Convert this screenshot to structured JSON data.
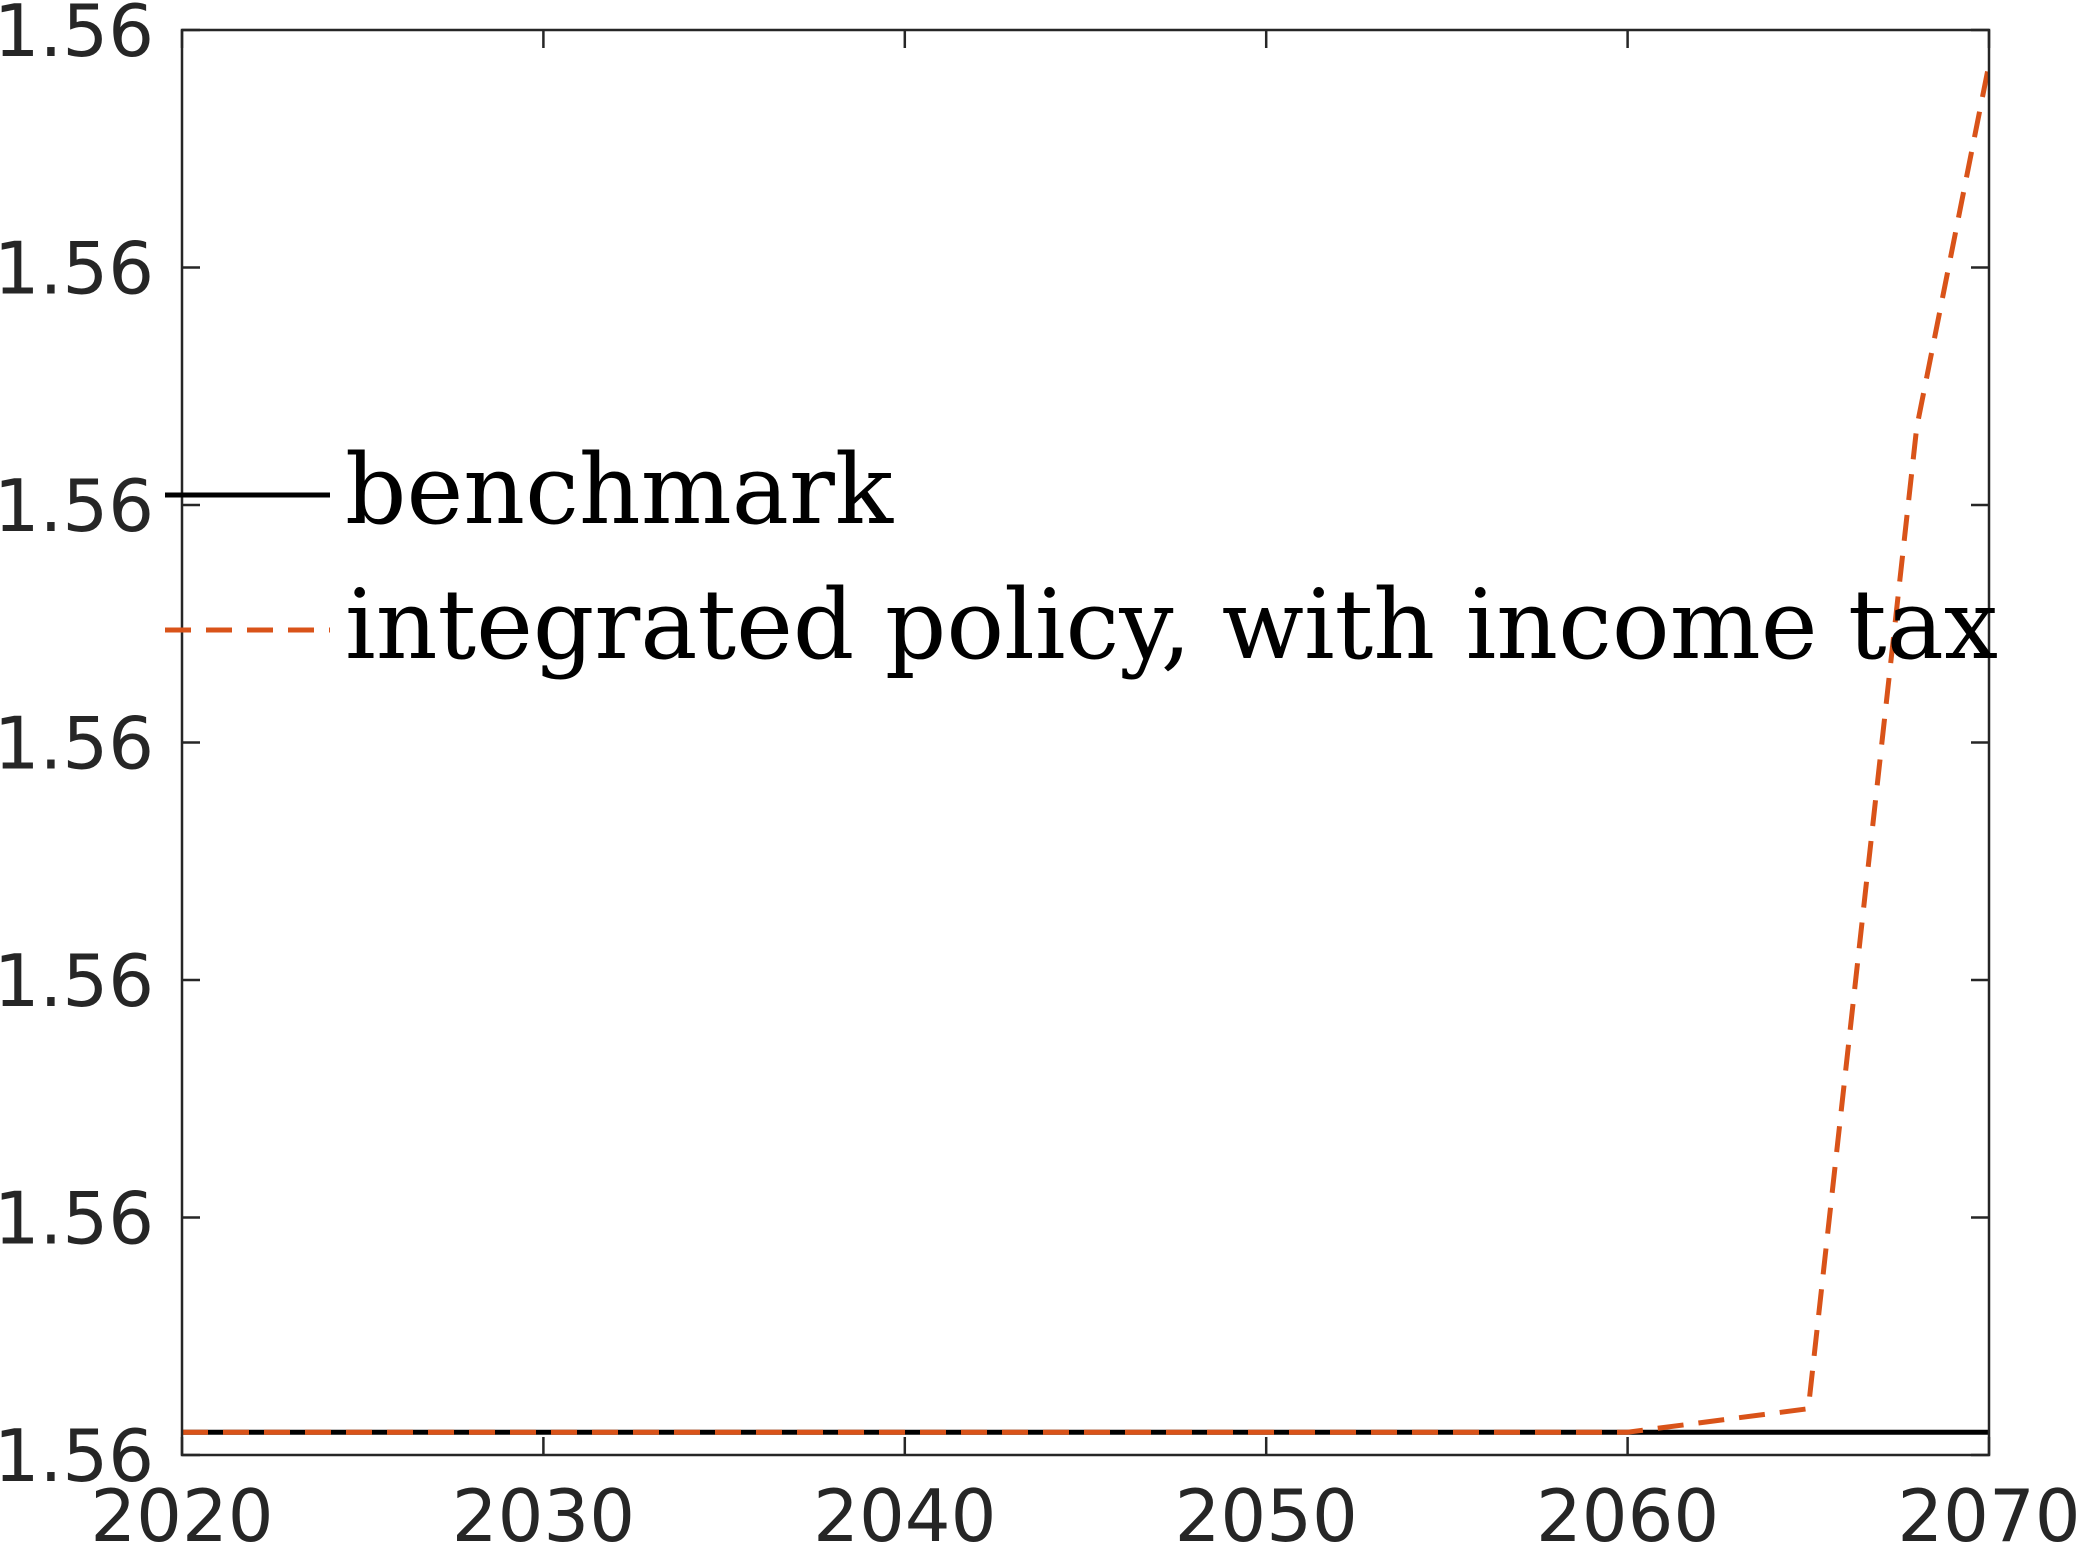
{
  "chart_data": {
    "type": "line",
    "title": "",
    "xlabel": "",
    "ylabel": "",
    "xlim": [
      2020,
      2070
    ],
    "x_ticks": [
      "2020",
      "2030",
      "2040",
      "2050",
      "2060",
      "2070"
    ],
    "y_ticks": [
      "1.56",
      "1.56",
      "1.56",
      "1.56",
      "1.56",
      "1.56",
      "1.56"
    ],
    "grid": false,
    "legend_position": "upper-left",
    "x": [
      2020,
      2025,
      2030,
      2035,
      2040,
      2045,
      2050,
      2055,
      2060,
      2065,
      2070
    ],
    "series": [
      {
        "name": "benchmark",
        "color": "#000000",
        "line_style": "solid",
        "values": [
          1.56,
          1.56,
          1.56,
          1.56,
          1.56,
          1.56,
          1.56,
          1.56,
          1.56,
          1.56,
          1.56
        ]
      },
      {
        "name": "integrated policy, with income tax",
        "color": "#D95319",
        "line_style": "dashed",
        "values": [
          1.56,
          1.56,
          1.56,
          1.56,
          1.56,
          1.56,
          1.56,
          1.56,
          1.56,
          1.56,
          1.56
        ]
      }
    ]
  }
}
